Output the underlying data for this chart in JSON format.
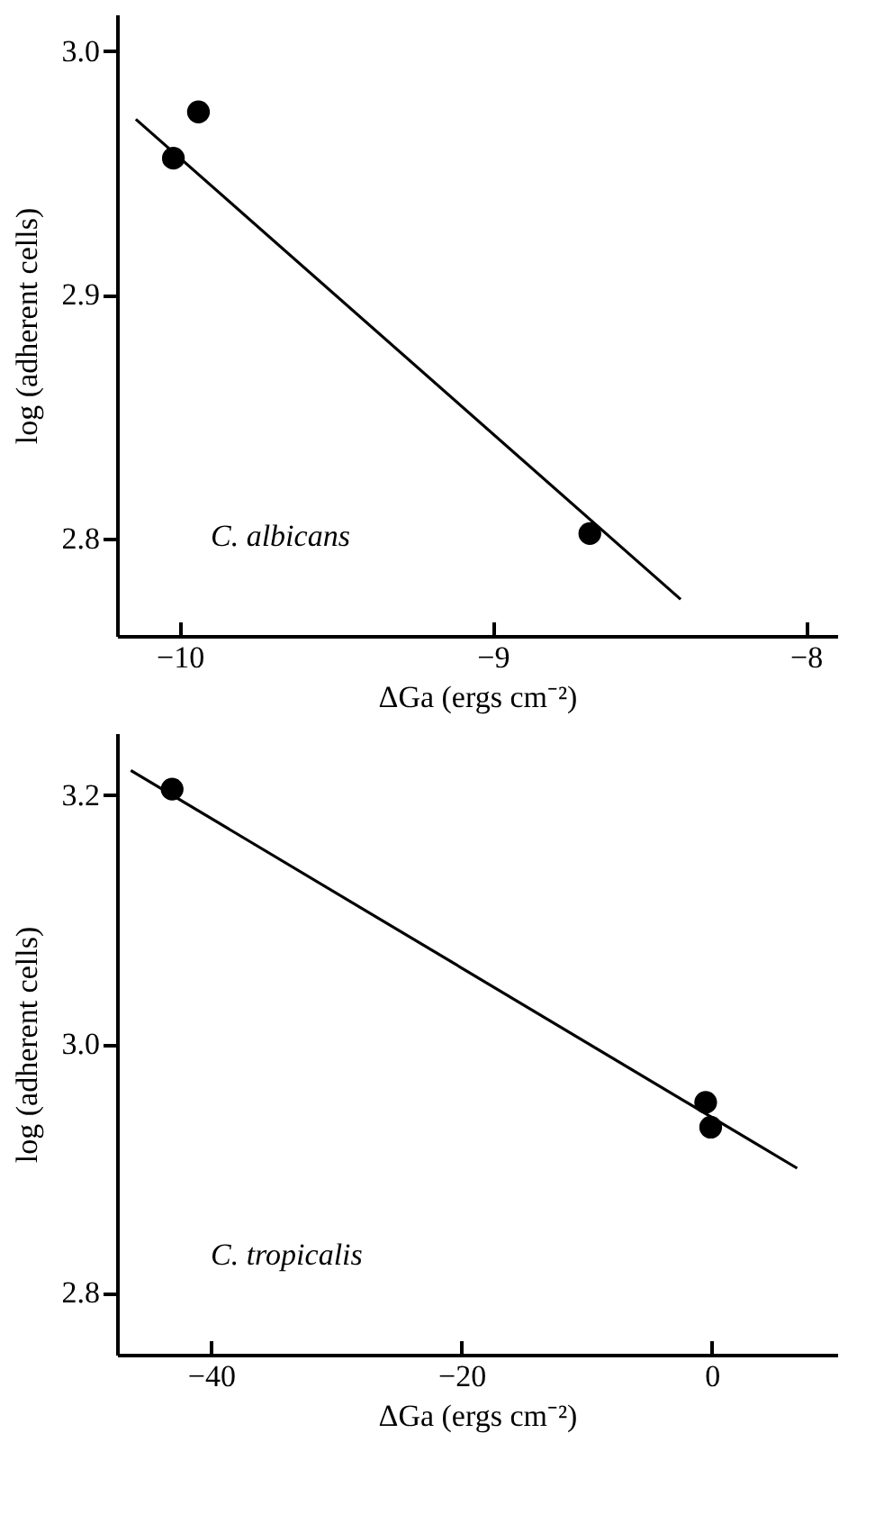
{
  "chart_data": [
    {
      "type": "scatter",
      "xlabel": "ΔGa (ergs cm⁻²)",
      "ylabel": "log (adherent cells)",
      "annotations": [
        "C. albicans"
      ],
      "xlim": [
        -10.2,
        -7.9
      ],
      "ylim": [
        2.76,
        3.015
      ],
      "xticks": [
        -10,
        -9,
        -8
      ],
      "yticks": [
        2.8,
        2.9,
        {
          "value": 3.0,
          "label": "3.0"
        }
      ],
      "series": [
        {
          "marker": "circle",
          "color": "#000000",
          "x": [
            -10.02,
            -9.94,
            -8.69
          ],
          "values": [
            2.956,
            2.975,
            2.802
          ]
        },
        {
          "type": "line",
          "color": "#000000",
          "x": [
            -10.14,
            -8.4
          ],
          "values": [
            2.972,
            2.775
          ]
        }
      ]
    },
    {
      "type": "scatter",
      "xlabel": "ΔGa (ergs cm⁻²)",
      "ylabel": "log (adherent cells)",
      "annotations": [
        "C. tropicalis"
      ],
      "xlim": [
        -47.5,
        10
      ],
      "ylim": [
        2.75,
        3.25
      ],
      "xticks": [
        -40,
        -20,
        0
      ],
      "yticks": [
        2.8,
        {
          "value": 3.0,
          "label": "3.0"
        },
        3.2
      ],
      "series": [
        {
          "marker": "circle",
          "color": "#000000",
          "x": [
            -43.1,
            -0.5,
            -0.1
          ],
          "values": [
            3.205,
            2.953,
            2.933
          ]
        },
        {
          "type": "line",
          "color": "#000000",
          "x": [
            -46.4,
            6.8
          ],
          "values": [
            3.22,
            2.9
          ]
        }
      ]
    }
  ]
}
